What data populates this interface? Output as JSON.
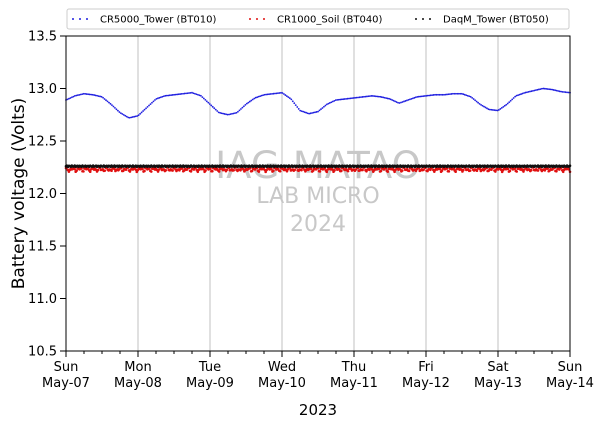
{
  "chart_data": {
    "type": "scatter",
    "title": "",
    "xlabel": "2023",
    "ylabel": "Battery voltage (Volts)",
    "ylim": [
      10.5,
      13.5
    ],
    "yticks": [
      10.5,
      11.0,
      11.5,
      12.0,
      12.5,
      13.0,
      13.5
    ],
    "xlim": [
      "2023-05-07",
      "2023-05-14"
    ],
    "x_ticks": [
      {
        "day": "Sun",
        "date": "May-07"
      },
      {
        "day": "Mon",
        "date": "May-08"
      },
      {
        "day": "Tue",
        "date": "May-09"
      },
      {
        "day": "Wed",
        "date": "May-10"
      },
      {
        "day": "Thu",
        "date": "May-11"
      },
      {
        "day": "Fri",
        "date": "May-12"
      },
      {
        "day": "Sat",
        "date": "May-13"
      },
      {
        "day": "Sun",
        "date": "May-14"
      }
    ],
    "grid": "vertical",
    "legend_position": "top",
    "watermark": {
      "line1": "IAG-MATAO",
      "line2": "LAB MICRO",
      "line3": "2024"
    },
    "series": [
      {
        "name": "CR5000_Tower (BT010)",
        "color": "#1f1fe0",
        "x": [
          "2023-05-07 00:00",
          "2023-05-07 03:00",
          "2023-05-07 06:00",
          "2023-05-07 09:00",
          "2023-05-07 12:00",
          "2023-05-07 15:00",
          "2023-05-07 18:00",
          "2023-05-07 21:00",
          "2023-05-08 00:00",
          "2023-05-08 03:00",
          "2023-05-08 06:00",
          "2023-05-08 09:00",
          "2023-05-08 12:00",
          "2023-05-08 15:00",
          "2023-05-08 18:00",
          "2023-05-08 21:00",
          "2023-05-09 00:00",
          "2023-05-09 03:00",
          "2023-05-09 06:00",
          "2023-05-09 09:00",
          "2023-05-09 12:00",
          "2023-05-09 15:00",
          "2023-05-09 18:00",
          "2023-05-09 21:00",
          "2023-05-10 00:00",
          "2023-05-10 03:00",
          "2023-05-10 06:00",
          "2023-05-10 09:00",
          "2023-05-10 12:00",
          "2023-05-10 15:00",
          "2023-05-10 18:00",
          "2023-05-10 21:00",
          "2023-05-11 00:00",
          "2023-05-11 03:00",
          "2023-05-11 06:00",
          "2023-05-11 09:00",
          "2023-05-11 12:00",
          "2023-05-11 15:00",
          "2023-05-11 18:00",
          "2023-05-11 21:00",
          "2023-05-12 00:00",
          "2023-05-12 03:00",
          "2023-05-12 06:00",
          "2023-05-12 09:00",
          "2023-05-12 12:00",
          "2023-05-12 15:00",
          "2023-05-12 18:00",
          "2023-05-12 21:00",
          "2023-05-13 00:00",
          "2023-05-13 03:00",
          "2023-05-13 06:00",
          "2023-05-13 09:00",
          "2023-05-13 12:00",
          "2023-05-13 15:00",
          "2023-05-13 18:00",
          "2023-05-13 21:00",
          "2023-05-14 00:00"
        ],
        "values": [
          12.89,
          12.93,
          12.95,
          12.94,
          12.92,
          12.85,
          12.77,
          12.72,
          12.74,
          12.82,
          12.9,
          12.93,
          12.94,
          12.95,
          12.96,
          12.93,
          12.85,
          12.77,
          12.75,
          12.77,
          12.85,
          12.91,
          12.94,
          12.95,
          12.96,
          12.9,
          12.79,
          12.76,
          12.78,
          12.85,
          12.89,
          12.9,
          12.91,
          12.92,
          12.93,
          12.92,
          12.9,
          12.86,
          12.89,
          12.92,
          12.93,
          12.94,
          12.94,
          12.95,
          12.95,
          12.92,
          12.85,
          12.8,
          12.79,
          12.85,
          12.93,
          12.96,
          12.98,
          13.0,
          12.99,
          12.97,
          12.96
        ]
      },
      {
        "name": "CR1000_Soil (BT040)",
        "color": "#e01010",
        "x": [
          "2023-05-07 00:00",
          "2023-05-07 12:00",
          "2023-05-08 00:00",
          "2023-05-08 12:00",
          "2023-05-09 00:00",
          "2023-05-09 12:00",
          "2023-05-10 00:00",
          "2023-05-10 12:00",
          "2023-05-11 00:00",
          "2023-05-11 12:00",
          "2023-05-12 00:00",
          "2023-05-12 12:00",
          "2023-05-13 00:00",
          "2023-05-13 12:00",
          "2023-05-14 00:00"
        ],
        "values": [
          12.23,
          12.23,
          12.23,
          12.23,
          12.23,
          12.23,
          12.23,
          12.23,
          12.23,
          12.23,
          12.23,
          12.23,
          12.23,
          12.23,
          12.23
        ]
      },
      {
        "name": "DaqM_Tower (BT050)",
        "color": "#111111",
        "x": [
          "2023-05-07 00:00",
          "2023-05-07 12:00",
          "2023-05-08 00:00",
          "2023-05-08 12:00",
          "2023-05-09 00:00",
          "2023-05-09 12:00",
          "2023-05-10 00:00",
          "2023-05-10 12:00",
          "2023-05-11 00:00",
          "2023-05-11 12:00",
          "2023-05-12 00:00",
          "2023-05-12 12:00",
          "2023-05-13 00:00",
          "2023-05-13 12:00",
          "2023-05-14 00:00"
        ],
        "values": [
          12.26,
          12.26,
          12.26,
          12.26,
          12.26,
          12.26,
          12.26,
          12.26,
          12.26,
          12.26,
          12.26,
          12.26,
          12.26,
          12.26,
          12.26
        ]
      }
    ]
  }
}
